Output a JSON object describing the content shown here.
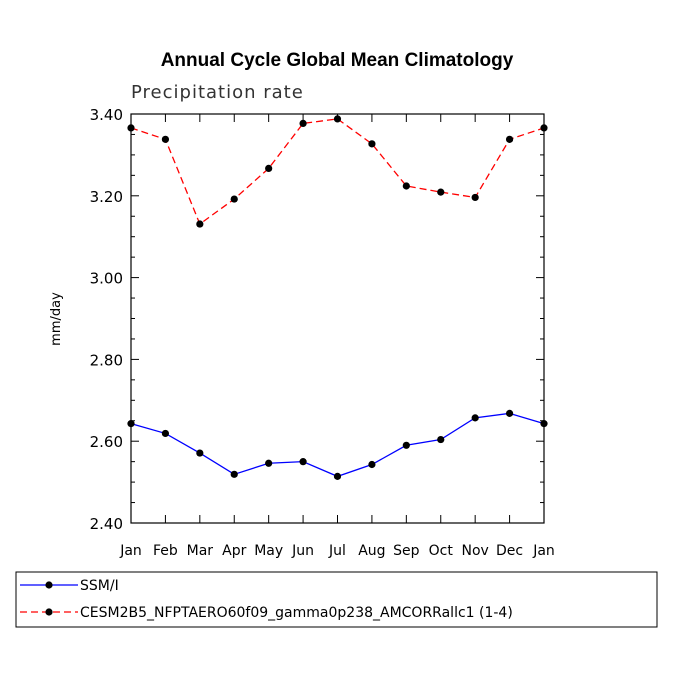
{
  "chart_data": {
    "type": "line",
    "title": "Annual Cycle Global Mean Climatology",
    "subtitle": "Precipitation rate",
    "xlabel": "",
    "ylabel": "mm/day",
    "categories": [
      "Jan",
      "Feb",
      "Mar",
      "Apr",
      "May",
      "Jun",
      "Jul",
      "Aug",
      "Sep",
      "Oct",
      "Nov",
      "Dec",
      "Jan"
    ],
    "ylim": [
      2.4,
      3.4
    ],
    "yticks": [
      "2.40",
      "2.60",
      "2.80",
      "3.00",
      "3.20",
      "3.40"
    ],
    "legend_position": "bottom",
    "series": [
      {
        "name": "SSM/I",
        "color": "#0000ff",
        "dash": "solid",
        "values": [
          2.643,
          2.619,
          2.571,
          2.519,
          2.546,
          2.55,
          2.514,
          2.543,
          2.59,
          2.604,
          2.657,
          2.668,
          2.643
        ]
      },
      {
        "name": "CESM2B5_NFPTAERO60f09_gamma0p238_AMCORRallc1 (1-4)",
        "color": "#ff0000",
        "dash": "dashed",
        "values": [
          3.366,
          3.338,
          3.131,
          3.192,
          3.267,
          3.377,
          3.388,
          3.327,
          3.224,
          3.209,
          3.196,
          3.338,
          3.366
        ]
      }
    ]
  }
}
